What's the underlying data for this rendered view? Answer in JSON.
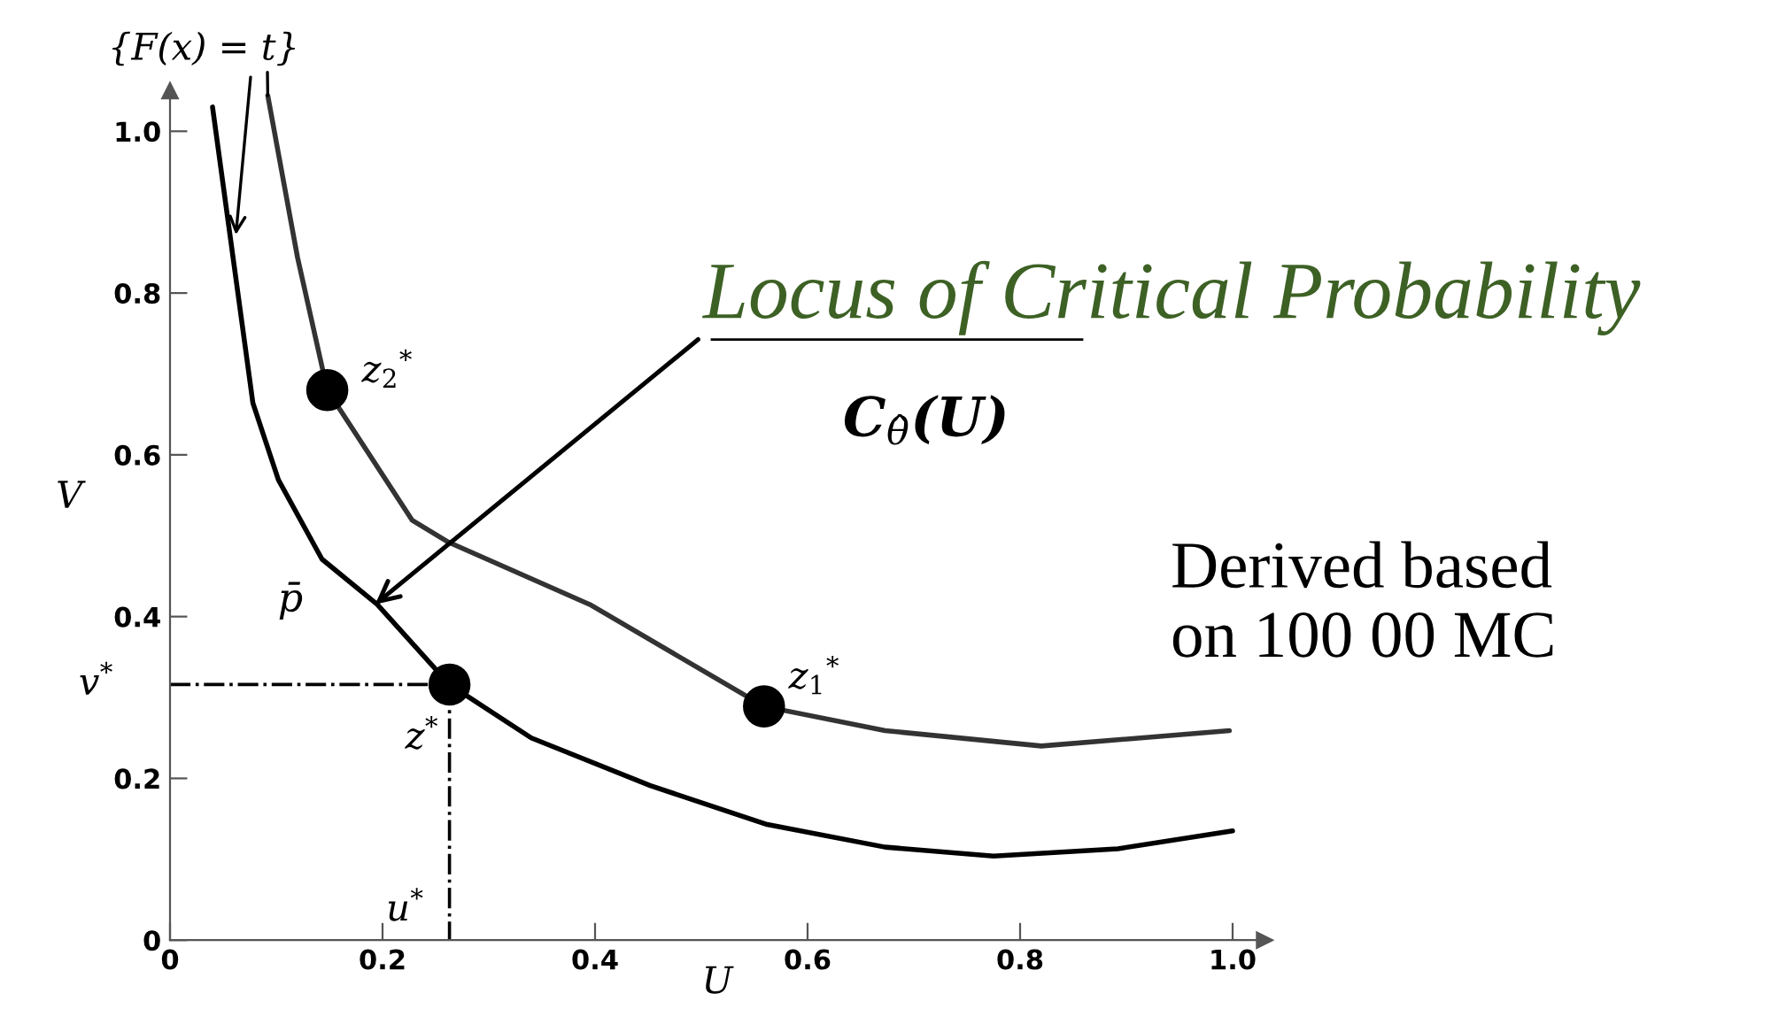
{
  "chart_data": {
    "type": "line",
    "xlabel": "U",
    "ylabel": "V",
    "xlim": [
      0,
      1.03
    ],
    "ylim": [
      0,
      1.05
    ],
    "xticks": [
      0,
      0.2,
      0.4,
      0.6,
      0.8,
      {
        "value": 1,
        "label": "1.0"
      }
    ],
    "yticks": [
      0,
      0.2,
      0.4,
      0.6,
      0.8,
      {
        "value": 1,
        "label": "1.0"
      }
    ],
    "grid": false,
    "marker": "none",
    "line_style": "solid",
    "series": [
      {
        "color": "#000000",
        "x": [
          0.04,
          0.078,
          0.102,
          0.143,
          0.195,
          0.263,
          0.34,
          0.452,
          0.562,
          0.673,
          0.775,
          0.892,
          1.0
        ],
        "values": [
          1.03,
          0.664,
          0.569,
          0.471,
          0.415,
          0.316,
          0.25,
          0.191,
          0.143,
          0.115,
          0.104,
          0.113,
          0.135
        ]
      },
      {
        "color": "#333333",
        "x": [
          0.092,
          0.12,
          0.148,
          0.228,
          0.262,
          0.395,
          0.559,
          0.673,
          0.82,
          0.997
        ],
        "values": [
          1.044,
          0.844,
          0.68,
          0.519,
          0.492,
          0.415,
          0.289,
          0.259,
          0.24,
          0.259
        ]
      },
      {
        "type": "scatter",
        "marker": "circle",
        "color": "#000000",
        "x": [
          0.148,
          0.559,
          0.263
        ],
        "values": [
          0.68,
          0.289,
          0.316
        ]
      },
      {
        "color": "#000000",
        "line_style": "dashdot",
        "x": [
          0,
          0.263
        ],
        "values": [
          0.316,
          0.316
        ]
      },
      {
        "color": "#000000",
        "line_style": "dashdot",
        "x": [
          0.263,
          0.263
        ],
        "values": [
          0.316,
          0
        ]
      }
    ],
    "annotations": [
      {
        "text": "{F(x) = t}",
        "x": 0.062,
        "y": 0.872
      },
      {
        "text": "Locus of Critical Probability",
        "x": 0.193,
        "y": 0.415
      },
      "C$_{θ̂}$(U)",
      "p̄",
      {
        "text": "z$_{2}$$^{*}$",
        "x": 0.148,
        "y": 0.68
      },
      {
        "text": "z$_{1}$$^{*}$",
        "x": 0.559,
        "y": 0.289
      },
      {
        "text": "z$^{*}$",
        "x": 0.263,
        "y": 0.316
      },
      {
        "text": "v$^{*}$",
        "x": 0,
        "y": 0.316
      },
      {
        "text": "u$^{*}$",
        "x": 0.263,
        "y": 0
      },
      "Derived based\non 100 00 MC"
    ]
  }
}
